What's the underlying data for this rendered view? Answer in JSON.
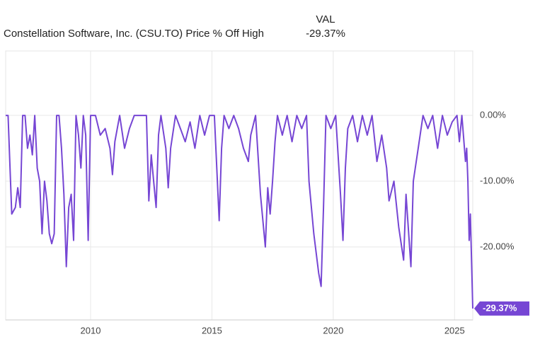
{
  "chart_data": {
    "type": "line",
    "title": "Constellation Software, Inc. (CSU.TO) Price % Off High",
    "legend_header": "VAL",
    "x": [
      2006.5,
      2006.6,
      2006.75,
      2006.9,
      2007.0,
      2007.1,
      2007.2,
      2007.3,
      2007.4,
      2007.5,
      2007.6,
      2007.7,
      2007.8,
      2007.9,
      2008.0,
      2008.1,
      2008.2,
      2008.3,
      2008.4,
      2008.5,
      2008.6,
      2008.7,
      2008.8,
      2008.9,
      2009.0,
      2009.1,
      2009.2,
      2009.3,
      2009.4,
      2009.5,
      2009.6,
      2009.7,
      2009.8,
      2009.9,
      2010.0,
      2010.2,
      2010.4,
      2010.6,
      2010.8,
      2010.9,
      2011.0,
      2011.2,
      2011.4,
      2011.6,
      2011.8,
      2012.0,
      2012.3,
      2012.4,
      2012.5,
      2012.6,
      2012.7,
      2012.8,
      2012.9,
      2013.1,
      2013.2,
      2013.3,
      2013.5,
      2013.7,
      2013.9,
      2014.1,
      2014.3,
      2014.5,
      2014.7,
      2014.9,
      2015.1,
      2015.3,
      2015.4,
      2015.5,
      2015.7,
      2015.9,
      2016.1,
      2016.3,
      2016.5,
      2016.6,
      2016.8,
      2017.0,
      2017.2,
      2017.3,
      2017.4,
      2017.5,
      2017.6,
      2017.7,
      2017.9,
      2018.1,
      2018.3,
      2018.5,
      2018.7,
      2018.9,
      2019.0,
      2019.2,
      2019.4,
      2019.5,
      2019.6,
      2019.7,
      2019.9,
      2020.1,
      2020.3,
      2020.4,
      2020.5,
      2020.6,
      2020.8,
      2021.0,
      2021.2,
      2021.4,
      2021.6,
      2021.8,
      2022.0,
      2022.2,
      2022.3,
      2022.5,
      2022.7,
      2022.9,
      2023.0,
      2023.2,
      2023.3,
      2023.5,
      2023.7,
      2023.9,
      2024.1,
      2024.3,
      2024.5,
      2024.7,
      2024.9,
      2025.1,
      2025.2,
      2025.3,
      2025.45,
      2025.5,
      2025.55,
      2025.6,
      2025.65,
      2025.75
    ],
    "series": [
      {
        "name": "VAL",
        "color": "#7646d4",
        "values": [
          0,
          0,
          -15,
          -14,
          -11,
          -14,
          0,
          0,
          -5,
          -3,
          -6,
          0,
          -8,
          -10,
          -18,
          -10,
          -13,
          -18,
          -19.5,
          -18,
          0,
          0,
          -5,
          -12,
          -23,
          -14,
          -12,
          -19,
          0,
          -3,
          -8,
          0,
          -3,
          -19,
          0,
          0,
          -3,
          -2,
          -5,
          -9,
          -4,
          0,
          -5,
          -2,
          0,
          0,
          0,
          -13,
          -6,
          -10,
          -14,
          -3,
          0,
          -5,
          -11,
          -5,
          0,
          -2,
          -4,
          -1,
          -5,
          0,
          -3,
          0,
          0,
          -16,
          -5,
          0,
          -2,
          0,
          -2,
          -5,
          -7,
          -3,
          0,
          -12,
          -20,
          -11,
          -15,
          -10,
          -4,
          0,
          -3,
          0,
          -4,
          0,
          -2,
          0,
          -10,
          -18,
          -24,
          -26,
          -14,
          0,
          -2,
          0,
          -12,
          -19,
          -8,
          -2,
          0,
          -4,
          0,
          -3,
          0,
          -7,
          -3,
          -8,
          -13,
          -10,
          -17,
          -22,
          -12,
          -23,
          -10,
          -5,
          0,
          -2,
          0,
          -5,
          0,
          -3,
          -1,
          0,
          -4,
          0,
          -7,
          -5,
          -10,
          -19,
          -15,
          -29.37
        ],
        "value_labels": {
          "131": "-29.37%"
        }
      }
    ],
    "xlim": [
      2006.5,
      2025.75
    ],
    "xticks": [
      2010,
      2015,
      2020,
      2025
    ],
    "ylim": [
      -31.1,
      9.8
    ],
    "yticks": [
      {
        "value": 0,
        "label": "0.00%"
      },
      {
        "value": -10,
        "label": "-10.00%"
      },
      {
        "value": -20,
        "label": "-20.00%"
      }
    ],
    "grid": true
  }
}
